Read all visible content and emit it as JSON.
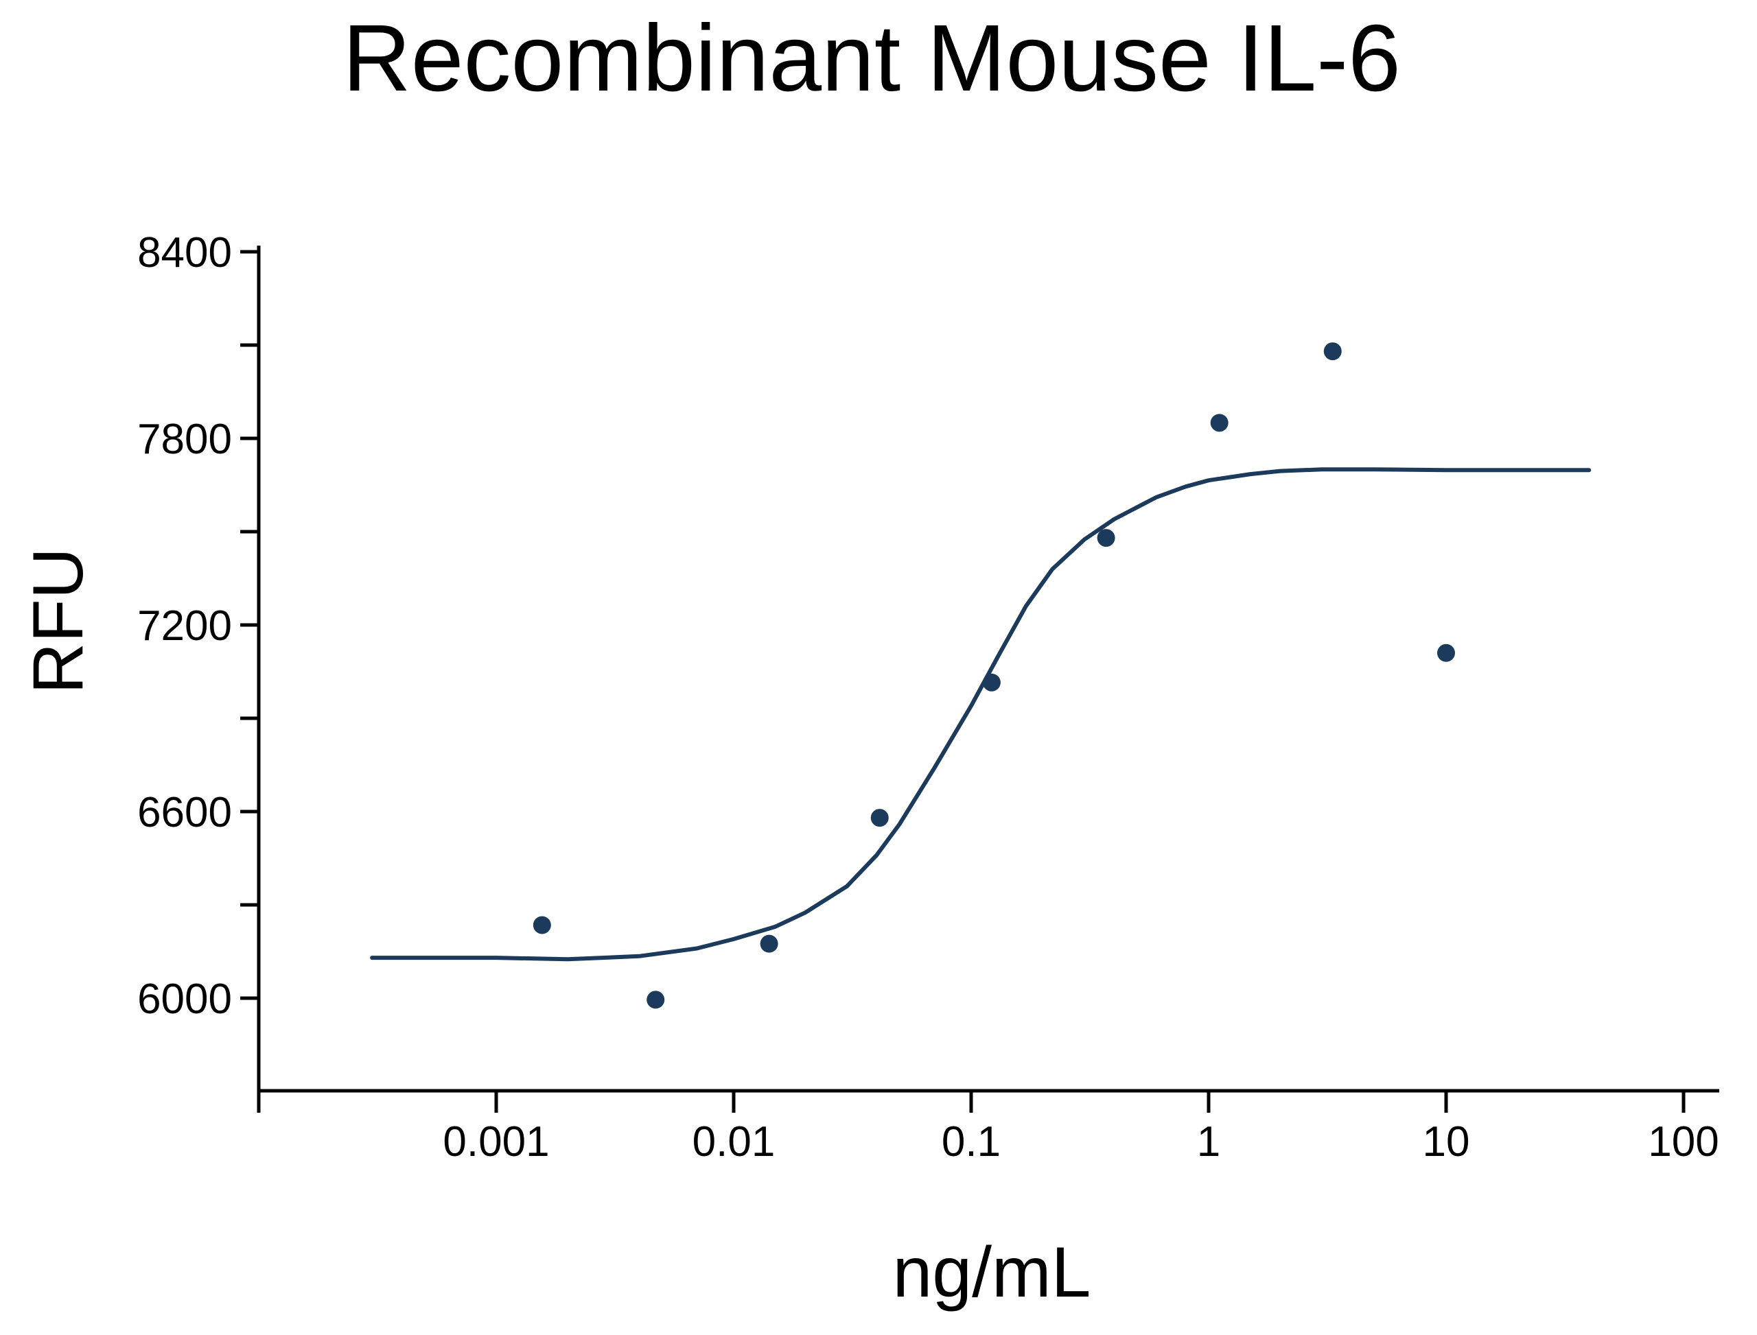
{
  "chart_data": {
    "type": "scatter",
    "title": "Recombinant Mouse IL-6",
    "xlabel": "ng/mL",
    "ylabel": "RFU",
    "x_scale": "log",
    "xlim": [
      0.0001,
      100
    ],
    "ylim": [
      5750,
      8400
    ],
    "x_ticks": [
      {
        "value": 0.001,
        "label": "0.001"
      },
      {
        "value": 0.01,
        "label": "0.01"
      },
      {
        "value": 0.1,
        "label": "0.1"
      },
      {
        "value": 1,
        "label": "1"
      },
      {
        "value": 10,
        "label": "10"
      },
      {
        "value": 100,
        "label": "100"
      }
    ],
    "y_major_ticks": [
      {
        "value": 6000,
        "label": "6000"
      },
      {
        "value": 6600,
        "label": "6600"
      },
      {
        "value": 7200,
        "label": "7200"
      },
      {
        "value": 7800,
        "label": "7800"
      },
      {
        "value": 8400,
        "label": "8400"
      }
    ],
    "y_minor_ticks": [
      6300,
      6900,
      7500,
      8100
    ],
    "grid": false,
    "color": "#1b3a5c",
    "series": [
      {
        "type": "scatter",
        "x": [
          0.00156,
          0.00469,
          0.0141,
          0.0412,
          0.122,
          0.37,
          1.11,
          3.33,
          10
        ],
        "y": [
          6235,
          5995,
          6175,
          6580,
          7015,
          7480,
          7850,
          8080,
          7110
        ]
      },
      {
        "type": "line",
        "x": [
          0.0003,
          0.0005,
          0.001,
          0.002,
          0.004,
          0.007,
          0.01,
          0.015,
          0.02,
          0.03,
          0.04,
          0.05,
          0.07,
          0.1,
          0.13,
          0.17,
          0.22,
          0.3,
          0.4,
          0.6,
          0.8,
          1,
          1.5,
          2,
          3,
          5,
          10,
          20,
          40
        ],
        "y": [
          6130,
          6130,
          6130,
          6125,
          6135,
          6160,
          6190,
          6230,
          6275,
          6360,
          6460,
          6560,
          6740,
          6940,
          7100,
          7260,
          7380,
          7475,
          7540,
          7610,
          7645,
          7665,
          7685,
          7695,
          7700,
          7700,
          7698,
          7698,
          7698
        ]
      }
    ]
  }
}
